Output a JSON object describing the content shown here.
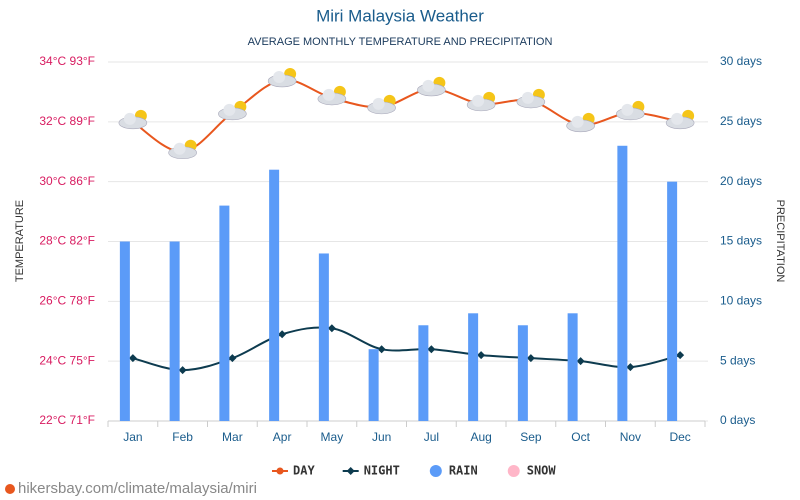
{
  "chart_data": {
    "type": "combo",
    "title": "Miri Malaysia Weather",
    "subtitle": "AVERAGE MONTHLY TEMPERATURE AND PRECIPITATION",
    "y_label": "TEMPERATURE",
    "y2_label": "PRECIPITATION",
    "source": "hikersbay.com/climate/malaysia/miri",
    "categories": [
      "Jan",
      "Feb",
      "Mar",
      "Apr",
      "May",
      "Jun",
      "Jul",
      "Aug",
      "Sep",
      "Oct",
      "Nov",
      "Dec"
    ],
    "ylim": [
      22,
      34
    ],
    "yticks": [
      {
        "value": 22,
        "label": "22°C 71°F"
      },
      {
        "value": 24,
        "label": "24°C 75°F"
      },
      {
        "value": 26,
        "label": "26°C 78°F"
      },
      {
        "value": 28,
        "label": "28°C 82°F"
      },
      {
        "value": 30,
        "label": "30°C 86°F"
      },
      {
        "value": 32,
        "label": "32°C 89°F"
      },
      {
        "value": 34,
        "label": "34°C 93°F"
      }
    ],
    "y2lim": [
      0,
      30
    ],
    "y2ticks": [
      {
        "value": 0,
        "label": "0 days"
      },
      {
        "value": 5,
        "label": "5 days"
      },
      {
        "value": 10,
        "label": "10 days"
      },
      {
        "value": 15,
        "label": "15 days"
      },
      {
        "value": 20,
        "label": "20 days"
      },
      {
        "value": 25,
        "label": "25 days"
      },
      {
        "value": 30,
        "label": "30 days"
      }
    ],
    "grid": true,
    "series": [
      {
        "name": "DAY",
        "type": "line",
        "color": "#e8571e",
        "values": [
          32.0,
          31.0,
          32.3,
          33.4,
          32.8,
          32.5,
          33.1,
          32.6,
          32.7,
          31.9,
          32.3,
          32.0
        ]
      },
      {
        "name": "NIGHT",
        "type": "line",
        "marker": "diamond",
        "color": "#0d3b4f",
        "values": [
          24.1,
          23.7,
          24.1,
          24.9,
          25.1,
          24.4,
          24.4,
          24.2,
          24.1,
          24.0,
          23.8,
          24.2
        ]
      },
      {
        "name": "RAIN",
        "type": "bar",
        "axis": "y2",
        "color": "#5b9bf8",
        "values": [
          15,
          15,
          18,
          21,
          14,
          6,
          8,
          9,
          8,
          9,
          23,
          20
        ]
      },
      {
        "name": "SNOW",
        "type": "bar",
        "axis": "y2",
        "color": "#ffb6c8",
        "values": [
          0,
          0,
          0,
          0,
          0,
          0,
          0,
          0,
          0,
          0,
          0,
          0
        ]
      }
    ]
  }
}
